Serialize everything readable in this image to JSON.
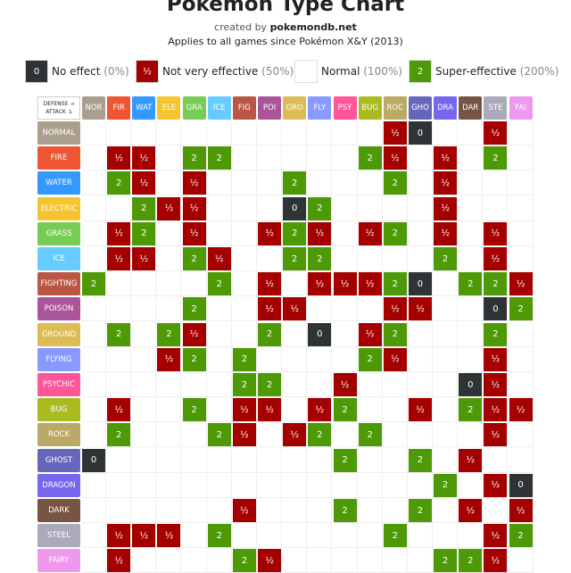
{
  "header": {
    "title": "Pokémon Type Chart",
    "credit_prefix": "created by",
    "credit_site": "pokemondb.net",
    "subtitle": "Applies to all games since Pokémon X&Y (2013)"
  },
  "legend": [
    {
      "symbol": "0",
      "label": "No effect",
      "pct": "(0%)"
    },
    {
      "symbol": "½",
      "label": "Not very effective",
      "pct": "(50%)"
    },
    {
      "symbol": null,
      "label": "Normal",
      "pct": "(100%)"
    },
    {
      "symbol": "2",
      "label": "Super-effective",
      "pct": "(200%)"
    }
  ],
  "table": {
    "corner_defense": "DEFENSE →",
    "corner_attack": "ATTACK ↴",
    "columns": [
      "NOR",
      "FIR",
      "WAT",
      "ELE",
      "GRA",
      "ICE",
      "FIG",
      "POI",
      "GRO",
      "FLY",
      "PSY",
      "BUG",
      "ROC",
      "GHO",
      "DRA",
      "DAR",
      "STE",
      "FAI"
    ],
    "rows": [
      {
        "label": "NORMAL",
        "cells": [
          null,
          null,
          null,
          null,
          null,
          null,
          null,
          null,
          null,
          null,
          null,
          null,
          "½",
          "0",
          null,
          null,
          "½",
          null
        ]
      },
      {
        "label": "FIRE",
        "cells": [
          null,
          "½",
          "½",
          null,
          "2",
          "2",
          null,
          null,
          null,
          null,
          null,
          "2",
          "½",
          null,
          "½",
          null,
          "2",
          null
        ]
      },
      {
        "label": "WATER",
        "cells": [
          null,
          "2",
          "½",
          null,
          "½",
          null,
          null,
          null,
          "2",
          null,
          null,
          null,
          "2",
          null,
          "½",
          null,
          null,
          null
        ]
      },
      {
        "label": "ELECTRIC",
        "cells": [
          null,
          null,
          "2",
          "½",
          "½",
          null,
          null,
          null,
          "0",
          "2",
          null,
          null,
          null,
          null,
          "½",
          null,
          null,
          null
        ]
      },
      {
        "label": "GRASS",
        "cells": [
          null,
          "½",
          "2",
          null,
          "½",
          null,
          null,
          "½",
          "2",
          "½",
          null,
          "½",
          "2",
          null,
          "½",
          null,
          "½",
          null
        ]
      },
      {
        "label": "ICE",
        "cells": [
          null,
          "½",
          "½",
          null,
          "2",
          "½",
          null,
          null,
          "2",
          "2",
          null,
          null,
          null,
          null,
          "2",
          null,
          "½",
          null
        ]
      },
      {
        "label": "FIGHTING",
        "cells": [
          "2",
          null,
          null,
          null,
          null,
          "2",
          null,
          "½",
          null,
          "½",
          "½",
          "½",
          "2",
          "0",
          null,
          "2",
          "2",
          "½"
        ]
      },
      {
        "label": "POISON",
        "cells": [
          null,
          null,
          null,
          null,
          "2",
          null,
          null,
          "½",
          "½",
          null,
          null,
          null,
          "½",
          "½",
          null,
          null,
          "0",
          "2"
        ]
      },
      {
        "label": "GROUND",
        "cells": [
          null,
          "2",
          null,
          "2",
          "½",
          null,
          null,
          "2",
          null,
          "0",
          null,
          "½",
          "2",
          null,
          null,
          null,
          "2",
          null
        ]
      },
      {
        "label": "FLYING",
        "cells": [
          null,
          null,
          null,
          "½",
          "2",
          null,
          "2",
          null,
          null,
          null,
          null,
          "2",
          "½",
          null,
          null,
          null,
          "½",
          null
        ]
      },
      {
        "label": "PSYCHIC",
        "cells": [
          null,
          null,
          null,
          null,
          null,
          null,
          "2",
          "2",
          null,
          null,
          "½",
          null,
          null,
          null,
          null,
          "0",
          "½",
          null
        ]
      },
      {
        "label": "BUG",
        "cells": [
          null,
          "½",
          null,
          null,
          "2",
          null,
          "½",
          "½",
          null,
          "½",
          "2",
          null,
          null,
          "½",
          null,
          "2",
          "½",
          "½"
        ]
      },
      {
        "label": "ROCK",
        "cells": [
          null,
          "2",
          null,
          null,
          null,
          "2",
          "½",
          null,
          "½",
          "2",
          null,
          "2",
          null,
          null,
          null,
          null,
          "½",
          null
        ]
      },
      {
        "label": "GHOST",
        "cells": [
          "0",
          null,
          null,
          null,
          null,
          null,
          null,
          null,
          null,
          null,
          "2",
          null,
          null,
          "2",
          null,
          "½",
          null,
          null
        ]
      },
      {
        "label": "DRAGON",
        "cells": [
          null,
          null,
          null,
          null,
          null,
          null,
          null,
          null,
          null,
          null,
          null,
          null,
          null,
          null,
          "2",
          null,
          "½",
          "0"
        ]
      },
      {
        "label": "DARK",
        "cells": [
          null,
          null,
          null,
          null,
          null,
          null,
          "½",
          null,
          null,
          null,
          "2",
          null,
          null,
          "2",
          null,
          "½",
          null,
          "½"
        ]
      },
      {
        "label": "STEEL",
        "cells": [
          null,
          "½",
          "½",
          "½",
          null,
          "2",
          null,
          null,
          null,
          null,
          null,
          null,
          "2",
          null,
          null,
          null,
          "½",
          "2"
        ]
      },
      {
        "label": "FAIRY",
        "cells": [
          null,
          "½",
          null,
          null,
          null,
          null,
          "2",
          "½",
          null,
          null,
          null,
          null,
          null,
          null,
          "2",
          "2",
          "½",
          null
        ]
      }
    ]
  }
}
